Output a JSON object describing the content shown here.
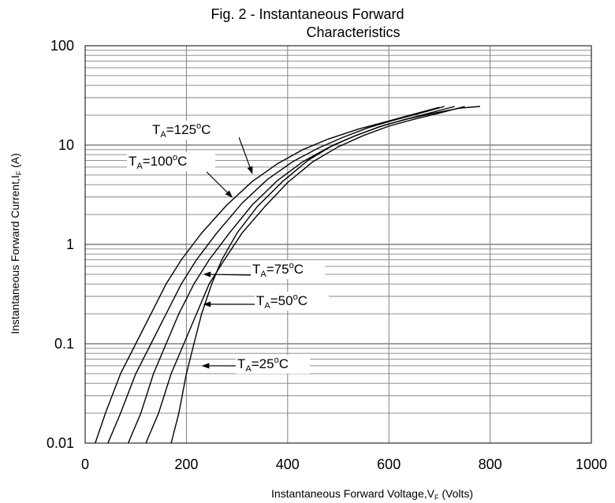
{
  "chart_data": {
    "type": "line",
    "title_lines": [
      "Fig. 2 - Instantaneous Forward",
      "Characteristics"
    ],
    "xlabel_parts": {
      "main": "Instantaneous Forward Voltage,V",
      "sub": "F",
      "suffix": " (Volts)"
    },
    "ylabel_parts": {
      "main": "Instantaneous Forward Current,I",
      "sub": "F",
      "suffix": " (A)"
    },
    "xlim": [
      0,
      1000
    ],
    "ylim": [
      0.01,
      100
    ],
    "y_scale": "log",
    "grid": true,
    "x_ticks": [
      "0",
      "200",
      "400",
      "600",
      "800",
      "1000"
    ],
    "y_ticks": [
      "0.01",
      "0.1",
      "1",
      "10",
      "100"
    ],
    "series": [
      {
        "name": "TA=125°C",
        "x": [
          20,
          40,
          70,
          100,
          130,
          160,
          190,
          230,
          280,
          330,
          380,
          430,
          480,
          540,
          600,
          650,
          700
        ],
        "y": [
          0.01,
          0.02,
          0.05,
          0.1,
          0.2,
          0.4,
          0.7,
          1.3,
          2.5,
          4.3,
          6.5,
          9,
          11.5,
          14.5,
          17.5,
          20.5,
          24
        ]
      },
      {
        "name": "TA=100°C",
        "x": [
          45,
          70,
          100,
          130,
          160,
          190,
          220,
          260,
          310,
          360,
          410,
          460,
          510,
          560,
          610,
          660,
          710
        ],
        "y": [
          0.01,
          0.02,
          0.05,
          0.1,
          0.2,
          0.4,
          0.7,
          1.3,
          2.6,
          4.5,
          6.8,
          9.3,
          12,
          15,
          17.8,
          20.8,
          24.5
        ]
      },
      {
        "name": "TA=75°C",
        "x": [
          85,
          110,
          135,
          160,
          185,
          215,
          245,
          285,
          330,
          380,
          430,
          480,
          530,
          580,
          630,
          680,
          730
        ],
        "y": [
          0.01,
          0.02,
          0.05,
          0.1,
          0.2,
          0.4,
          0.7,
          1.3,
          2.5,
          4.4,
          6.8,
          9.4,
          12.2,
          15.2,
          18,
          21,
          24.5
        ]
      },
      {
        "name": "TA=50°C",
        "x": [
          120,
          145,
          170,
          195,
          220,
          245,
          275,
          310,
          355,
          400,
          450,
          500,
          550,
          600,
          650,
          700,
          750
        ],
        "y": [
          0.01,
          0.02,
          0.05,
          0.1,
          0.2,
          0.4,
          0.7,
          1.3,
          2.4,
          4.2,
          6.8,
          9.6,
          12.5,
          15.5,
          18.2,
          21,
          24.5
        ]
      },
      {
        "name": "TA=25°C",
        "x": [
          170,
          185,
          200,
          215,
          230,
          250,
          270,
          300,
          340,
          390,
          440,
          490,
          540,
          590,
          640,
          690,
          740,
          780
        ],
        "y": [
          0.01,
          0.02,
          0.05,
          0.1,
          0.2,
          0.4,
          0.7,
          1.3,
          2.4,
          4.3,
          7,
          10,
          12.8,
          15.8,
          18.5,
          21,
          23.5,
          24.5
        ]
      }
    ],
    "annotations": [
      {
        "main": "T",
        "sub": "A",
        "value": "=125",
        "deg": "o",
        "unit": "C",
        "arrow_to": [
          330,
          5.2
        ]
      },
      {
        "main": "T",
        "sub": "A",
        "value": "=100",
        "deg": "o",
        "unit": "C",
        "arrow_to": [
          290,
          3.0
        ]
      },
      {
        "main": "T",
        "sub": "A",
        "value": "=75",
        "deg": "o",
        "unit": "C",
        "arrow_to": [
          235,
          0.5
        ]
      },
      {
        "main": "T",
        "sub": "A",
        "value": "=50",
        "deg": "o",
        "unit": "C",
        "arrow_to": [
          235,
          0.25
        ]
      },
      {
        "main": "T",
        "sub": "A",
        "value": "=25",
        "deg": "o",
        "unit": "C",
        "arrow_to": [
          232,
          0.06
        ]
      }
    ]
  },
  "colors": {
    "grid": "#808080",
    "curve": "#000000",
    "axis": "#000000",
    "annotation_bg": "#ffffff"
  }
}
